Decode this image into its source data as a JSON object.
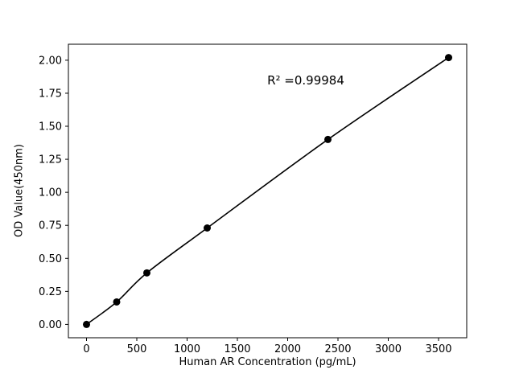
{
  "chart_data": {
    "type": "scatter",
    "title": "",
    "xlabel": "Human AR Concentration (pg/mL)",
    "ylabel": "OD Value(450nm)",
    "annotation": "R² =0.99984",
    "x": [
      0,
      300,
      600,
      1200,
      2400,
      3600
    ],
    "y": [
      0.0,
      0.17,
      0.39,
      0.73,
      1.4,
      2.02
    ],
    "xticks": [
      0,
      500,
      1000,
      1500,
      2000,
      2500,
      3000,
      3500
    ],
    "xtick_labels": [
      "0",
      "500",
      "1000",
      "1500",
      "2000",
      "2500",
      "3000",
      "3500"
    ],
    "yticks": [
      0.0,
      0.25,
      0.5,
      0.75,
      1.0,
      1.25,
      1.5,
      1.75,
      2.0
    ],
    "ytick_labels": [
      "0.00",
      "0.25",
      "0.50",
      "0.75",
      "1.00",
      "1.25",
      "1.50",
      "1.75",
      "2.00"
    ],
    "xlim": [
      -180,
      3780
    ],
    "ylim": [
      -0.101,
      2.121
    ],
    "grid": false,
    "legend": "none",
    "line_color": "#000000",
    "marker_color": "#000000",
    "background_color": "#ffffff"
  }
}
